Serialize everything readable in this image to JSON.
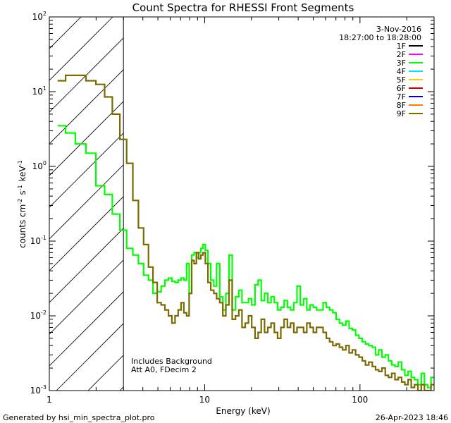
{
  "chart_data": {
    "type": "line",
    "title": "Count Spectra for RHESSI Front Segments",
    "date": "3-Nov-2016",
    "time_range": "18:27:00 to 18:28:00",
    "xlabel": "Energy (keV)",
    "ylabel": "counts cm<sup>-2</sup> s<sup>-1</sup> keV<sup>-1</sup>",
    "x_scale": "log",
    "y_scale": "log",
    "xlim": [
      1,
      300
    ],
    "ylim": [
      0.001,
      100
    ],
    "x_ticks": [
      {
        "v": 1,
        "label": "1"
      },
      {
        "v": 10,
        "label": "10"
      },
      {
        "v": 100,
        "label": "100"
      }
    ],
    "y_ticks": [
      {
        "v": 0.001,
        "base": "10",
        "exp": "-3"
      },
      {
        "v": 0.01,
        "base": "10",
        "exp": "-2"
      },
      {
        "v": 0.1,
        "base": "10",
        "exp": "-1"
      },
      {
        "v": 1,
        "base": "10",
        "exp": "0"
      },
      {
        "v": 10,
        "base": "10",
        "exp": "1"
      },
      {
        "v": 100,
        "base": "10",
        "exp": "2"
      }
    ],
    "attenuator_threshold_keV": 3,
    "legend_position": "top-right",
    "legend": [
      {
        "name": "1F",
        "color": "#000000"
      },
      {
        "name": "2F",
        "color": "#ff00ff"
      },
      {
        "name": "3F",
        "color": "#00ff00"
      },
      {
        "name": "4F",
        "color": "#00e5ff"
      },
      {
        "name": "5F",
        "color": "#ffcc00"
      },
      {
        "name": "6F",
        "color": "#cc0000"
      },
      {
        "name": "7F",
        "color": "#0000cc"
      },
      {
        "name": "8F",
        "color": "#ff8000"
      },
      {
        "name": "9F",
        "color": "#7a6a00"
      }
    ],
    "annotations": [
      "Includes Background",
      "Att A0, FDecim 2"
    ],
    "series": [
      {
        "name": "3F",
        "color": "#00ff00",
        "x": [
          1.2,
          1.35,
          1.6,
          1.85,
          2.15,
          2.4,
          2.7,
          3.0,
          3.3,
          3.6,
          3.9,
          4.2,
          4.5,
          4.8,
          5.1,
          5.4,
          5.7,
          6.0,
          6.3,
          6.6,
          6.9,
          7.2,
          7.5,
          7.8,
          8.1,
          8.4,
          8.7,
          9.0,
          9.3,
          9.6,
          9.9,
          10.3,
          10.7,
          11.2,
          11.7,
          12.2,
          12.8,
          13.4,
          14.0,
          14.7,
          15.4,
          16.2,
          17.0,
          17.8,
          18.7,
          19.6,
          20.6,
          21.6,
          22.6,
          23.7,
          24.9,
          26.1,
          27.4,
          28.8,
          30.2,
          31.7,
          33.3,
          34.9,
          36.6,
          38.4,
          40.3,
          42.3,
          44.4,
          46.6,
          48.9,
          51.3,
          53.8,
          56.5,
          59.3,
          62.2,
          65.3,
          68.5,
          71.9,
          75.5,
          79.2,
          83.1,
          87.2,
          91.5,
          96.0,
          101,
          106,
          111,
          117,
          123,
          129,
          135,
          142,
          149,
          156,
          164,
          172,
          181,
          190,
          199,
          209,
          219,
          230,
          242,
          254,
          266,
          280,
          293
        ],
        "values": [
          3.5,
          2.8,
          2.0,
          1.5,
          0.55,
          0.42,
          0.23,
          0.14,
          0.08,
          0.065,
          0.05,
          0.035,
          0.03,
          0.02,
          0.021,
          0.025,
          0.03,
          0.032,
          0.029,
          0.028,
          0.03,
          0.032,
          0.03,
          0.05,
          0.02,
          0.065,
          0.07,
          0.06,
          0.07,
          0.08,
          0.09,
          0.075,
          0.05,
          0.03,
          0.025,
          0.05,
          0.018,
          0.012,
          0.02,
          0.065,
          0.012,
          0.018,
          0.022,
          0.015,
          0.015,
          0.017,
          0.014,
          0.026,
          0.03,
          0.016,
          0.02,
          0.015,
          0.018,
          0.015,
          0.012,
          0.013,
          0.016,
          0.013,
          0.012,
          0.015,
          0.025,
          0.014,
          0.017,
          0.012,
          0.014,
          0.013,
          0.012,
          0.012,
          0.015,
          0.013,
          0.012,
          0.011,
          0.009,
          0.008,
          0.0075,
          0.0085,
          0.0068,
          0.0065,
          0.0055,
          0.005,
          0.0045,
          0.0042,
          0.004,
          0.0038,
          0.003,
          0.0035,
          0.0028,
          0.003,
          0.0025,
          0.0022,
          0.0021,
          0.0024,
          0.0019,
          0.0016,
          0.0018,
          0.0015,
          0.0014,
          0.0012,
          0.0017,
          0.0012,
          0.0011,
          0.0015
        ]
      },
      {
        "name": "9F",
        "color": "#7a6a00",
        "x": [
          1.2,
          1.35,
          1.6,
          1.85,
          2.15,
          2.4,
          2.7,
          3.0,
          3.3,
          3.6,
          3.9,
          4.2,
          4.5,
          4.8,
          5.1,
          5.4,
          5.7,
          6.0,
          6.3,
          6.6,
          6.9,
          7.2,
          7.5,
          7.8,
          8.1,
          8.4,
          8.7,
          9.0,
          9.3,
          9.6,
          9.9,
          10.3,
          10.7,
          11.2,
          11.7,
          12.2,
          12.8,
          13.4,
          14.0,
          14.7,
          15.4,
          16.2,
          17.0,
          17.8,
          18.7,
          19.6,
          20.6,
          21.6,
          22.6,
          23.7,
          24.9,
          26.1,
          27.4,
          28.8,
          30.2,
          31.7,
          33.3,
          34.9,
          36.6,
          38.4,
          40.3,
          42.3,
          44.4,
          46.6,
          48.9,
          51.3,
          53.8,
          56.5,
          59.3,
          62.2,
          65.3,
          68.5,
          71.9,
          75.5,
          79.2,
          83.1,
          87.2,
          91.5,
          96.0,
          101,
          106,
          111,
          117,
          123,
          129,
          135,
          142,
          149,
          156,
          164,
          172,
          181,
          190,
          199,
          209,
          219,
          230,
          242,
          254,
          266,
          280,
          293
        ],
        "values": [
          14,
          16.5,
          16.5,
          14,
          12.5,
          8.5,
          5.0,
          2.3,
          1.1,
          0.35,
          0.15,
          0.09,
          0.045,
          0.028,
          0.015,
          0.014,
          0.012,
          0.01,
          0.008,
          0.01,
          0.012,
          0.015,
          0.011,
          0.01,
          0.02,
          0.055,
          0.05,
          0.07,
          0.058,
          0.065,
          0.07,
          0.05,
          0.028,
          0.022,
          0.02,
          0.017,
          0.015,
          0.01,
          0.014,
          0.03,
          0.009,
          0.01,
          0.012,
          0.007,
          0.008,
          0.01,
          0.007,
          0.005,
          0.006,
          0.009,
          0.006,
          0.007,
          0.008,
          0.006,
          0.005,
          0.007,
          0.009,
          0.007,
          0.008,
          0.006,
          0.007,
          0.007,
          0.006,
          0.008,
          0.007,
          0.006,
          0.007,
          0.007,
          0.006,
          0.005,
          0.0045,
          0.004,
          0.0042,
          0.0038,
          0.0035,
          0.004,
          0.0032,
          0.0035,
          0.003,
          0.0028,
          0.0025,
          0.0022,
          0.0024,
          0.0021,
          0.0019,
          0.0018,
          0.002,
          0.0016,
          0.0015,
          0.0017,
          0.0014,
          0.0015,
          0.0013,
          0.0012,
          0.0014,
          0.0011,
          0.0012,
          0.001,
          0.0012,
          0.001,
          0.001,
          0.0012
        ]
      }
    ]
  },
  "footer": {
    "generated": "Generated by hsi_min_spectra_plot.pro",
    "datetime": "26-Apr-2023 18:46"
  }
}
